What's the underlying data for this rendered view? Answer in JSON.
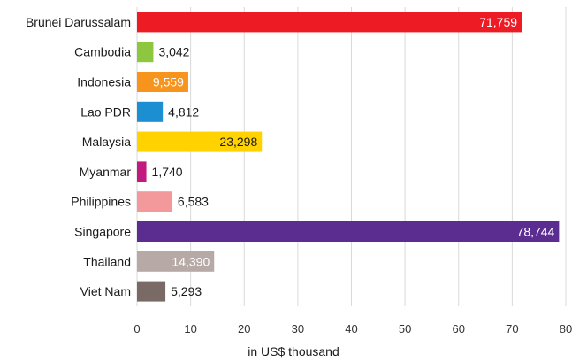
{
  "chart_data": {
    "type": "bar",
    "orientation": "horizontal",
    "categories": [
      "Brunei Darussalam",
      "Cambodia",
      "Indonesia",
      "Lao PDR",
      "Malaysia",
      "Myanmar",
      "Philippines",
      "Singapore",
      "Thailand",
      "Viet Nam"
    ],
    "values": [
      71.759,
      3.042,
      9.559,
      4.812,
      23.298,
      1.74,
      6.583,
      78.744,
      14.39,
      5.293
    ],
    "value_labels": [
      "71,759",
      "3,042",
      "9,559",
      "4,812",
      "23,298",
      "1,740",
      "6,583",
      "78,744",
      "14,390",
      "5,293"
    ],
    "bar_colors": [
      "#ed1c24",
      "#8dc63f",
      "#f7941d",
      "#1b8fd2",
      "#ffd200",
      "#c2187f",
      "#f4999b",
      "#5c2d91",
      "#b7aaa6",
      "#7a6a66"
    ],
    "label_colors": [
      "#ffffff",
      "#1a1a1a",
      "#ffffff",
      "#1a1a1a",
      "#1a1a1a",
      "#1a1a1a",
      "#1a1a1a",
      "#ffffff",
      "#ffffff",
      "#1a1a1a"
    ],
    "label_inside": [
      true,
      false,
      true,
      false,
      true,
      false,
      false,
      true,
      true,
      false
    ],
    "xticks": [
      0,
      10,
      20,
      30,
      40,
      50,
      60,
      70,
      80
    ],
    "xlim": [
      0,
      80
    ],
    "xlabel": "in US$ thousand",
    "grid": true
  }
}
